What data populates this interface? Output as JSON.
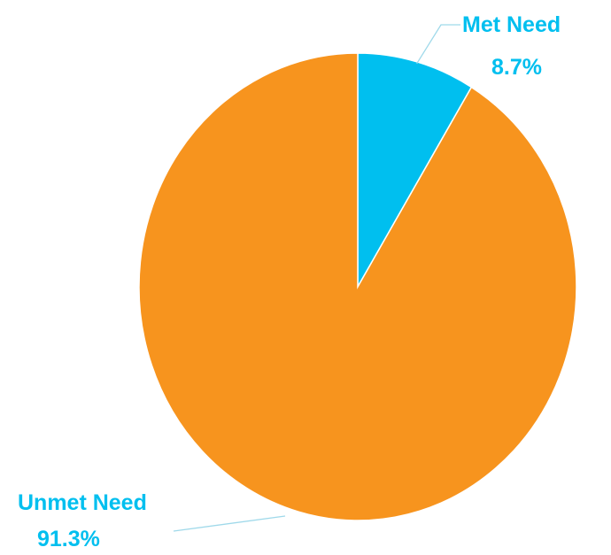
{
  "chart_data": {
    "type": "pie",
    "title": "",
    "start_angle_deg": 0,
    "direction": "clockwise",
    "slices": [
      {
        "name": "Met Need",
        "value": 8.7,
        "value_label": "8.7%",
        "color": "#00BFEF"
      },
      {
        "name": "Unmet Need",
        "value": 91.3,
        "value_label": "91.3%",
        "color": "#F7941E"
      }
    ],
    "label_color": "#00BFEF",
    "leader_color": "#9FD9EA",
    "legend": "none",
    "data_labels": "outside-with-leader-lines"
  }
}
